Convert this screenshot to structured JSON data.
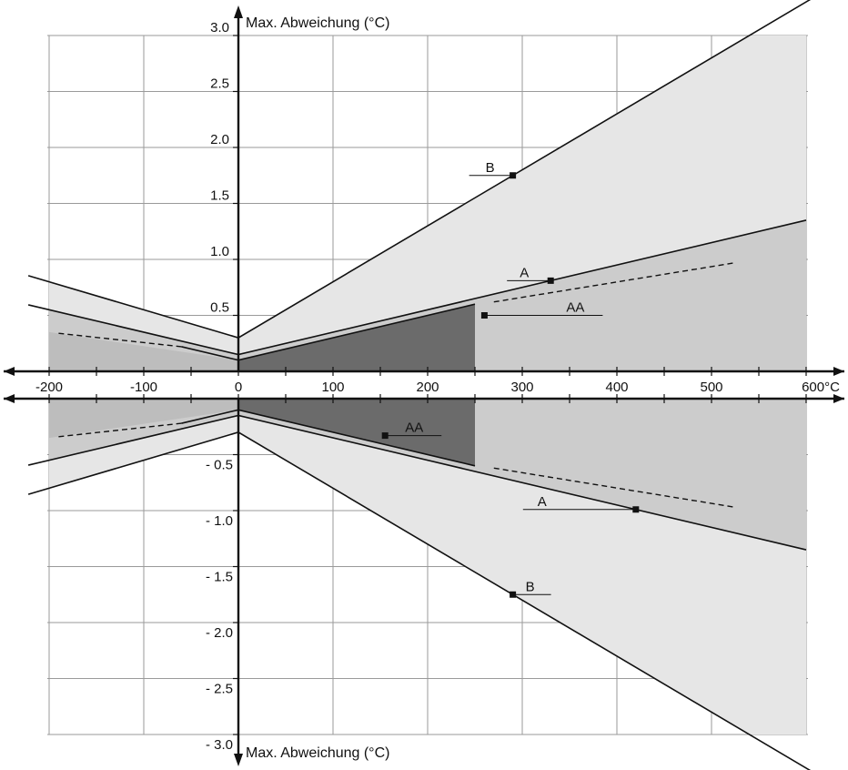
{
  "chart_data": {
    "type": "line",
    "title": "",
    "ylabel_top": "Max. Abweichung (°C)",
    "ylabel_bottom": "Max. Abweichung (°C)",
    "x_unit": "°C",
    "xlim": [
      -200,
      600
    ],
    "ylim_pos": [
      0,
      3.0
    ],
    "ylim_neg": [
      -3.0,
      0
    ],
    "x_ticks": [
      "-200",
      "-100",
      "0",
      "100",
      "200",
      "300",
      "400",
      "500",
      "600°C"
    ],
    "y_ticks_pos": [
      "0.5",
      "1.0",
      "1.5",
      "2.0",
      "2.5",
      "3.0"
    ],
    "y_ticks_neg": [
      "- 0.5",
      "- 1.0",
      "- 1.5",
      "- 2.0",
      "- 2.5",
      "- 3.0"
    ],
    "grid": true,
    "series": [
      {
        "name": "B",
        "x": [
          -200,
          0,
          600
        ],
        "y": [
          0.8,
          0.3,
          3.3
        ],
        "range": [
          -200,
          600
        ]
      },
      {
        "name": "A",
        "x": [
          -200,
          0,
          600
        ],
        "y": [
          0.55,
          0.15,
          1.35
        ],
        "range": [
          -200,
          600
        ]
      },
      {
        "name": "AA",
        "x": [
          -200,
          0,
          250
        ],
        "y": [
          0.35,
          0.1,
          0.6
        ],
        "range": [
          -200,
          250
        ]
      }
    ],
    "markers": [
      {
        "label": "B",
        "x": 290,
        "y": 1.75
      },
      {
        "label": "A",
        "x": 330,
        "y": 0.81
      },
      {
        "label": "AA",
        "x": 260,
        "y": 0.5
      },
      {
        "label": "AA",
        "x": 155,
        "y": -0.33
      },
      {
        "label": "A",
        "x": 420,
        "y": -0.99
      },
      {
        "label": "B",
        "x": 290,
        "y": -1.75
      }
    ]
  }
}
